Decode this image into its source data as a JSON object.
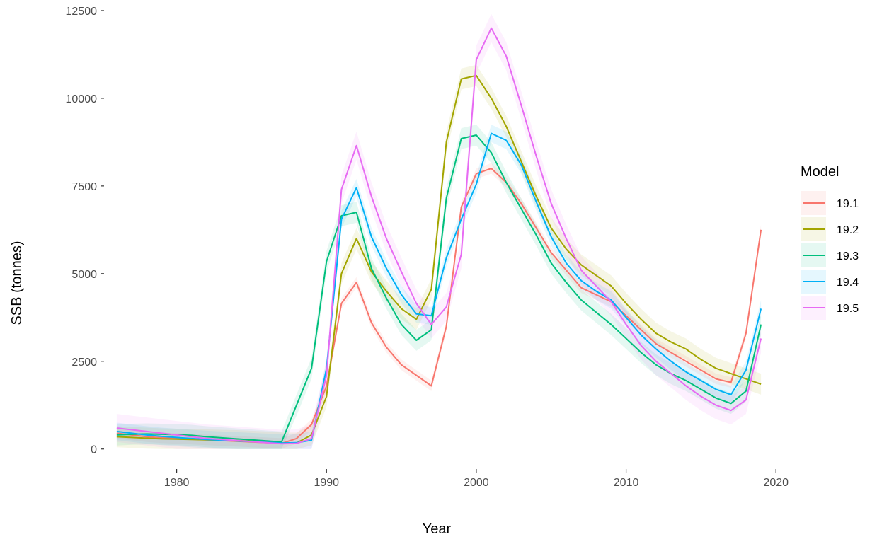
{
  "chart_data": {
    "type": "line",
    "title": "",
    "xlabel": "Year",
    "ylabel": "SSB (tonnes)",
    "xlim": [
      1975.2,
      2019.8
    ],
    "ylim": [
      -550,
      12600
    ],
    "x_ticks": [
      1980,
      1990,
      2000,
      2010,
      2020
    ],
    "y_ticks": [
      0,
      2500,
      5000,
      7500,
      10000,
      12500
    ],
    "x_tick_labels": [
      "1980",
      "1990",
      "2000",
      "2010",
      "2020"
    ],
    "y_tick_labels": [
      "0",
      "2500",
      "5000",
      "7500",
      "10000",
      "12500"
    ],
    "grid": false,
    "legend": {
      "title": "Model",
      "placement": "right"
    },
    "x": [
      1976,
      1977,
      1978,
      1979,
      1980,
      1981,
      1982,
      1983,
      1984,
      1985,
      1986,
      1987,
      1988,
      1989,
      1990,
      1991,
      1992,
      1993,
      1994,
      1995,
      1996,
      1997,
      1998,
      1999,
      2000,
      2001,
      2002,
      2003,
      2004,
      2005,
      2006,
      2007,
      2008,
      2009,
      2010,
      2011,
      2012,
      2013,
      2014,
      2015,
      2016,
      2017,
      2018,
      2019
    ],
    "series": [
      {
        "name": "19.1",
        "color": "#F8766D",
        "values": [
          450,
          400,
          350,
          320,
          300,
          280,
          260,
          240,
          220,
          200,
          180,
          160,
          300,
          700,
          1800,
          4150,
          4750,
          3600,
          2900,
          2400,
          2100,
          1800,
          3500,
          6900,
          7850,
          8000,
          7600,
          7000,
          6300,
          5600,
          5100,
          4600,
          4400,
          4200,
          3800,
          3400,
          3000,
          2750,
          2500,
          2250,
          2000,
          1900,
          3300,
          6250
        ],
        "band": 150
      },
      {
        "name": "19.2",
        "color": "#A3A500",
        "values": [
          350,
          330,
          310,
          290,
          280,
          270,
          260,
          250,
          240,
          220,
          200,
          170,
          170,
          400,
          1500,
          5000,
          6000,
          5050,
          4500,
          4000,
          3700,
          4550,
          8750,
          10550,
          10650,
          10000,
          9200,
          8200,
          7200,
          6300,
          5700,
          5250,
          4950,
          4650,
          4150,
          3700,
          3300,
          3050,
          2850,
          2550,
          2300,
          2150,
          2000,
          1850
        ],
        "band": 300
      },
      {
        "name": "19.3",
        "color": "#00BF7D",
        "values": [
          400,
          420,
          430,
          420,
          410,
          390,
          350,
          320,
          290,
          260,
          230,
          200,
          1250,
          2300,
          5350,
          6650,
          6750,
          5150,
          4300,
          3550,
          3100,
          3400,
          7150,
          8850,
          8950,
          8450,
          7600,
          6850,
          6100,
          5300,
          4750,
          4250,
          3900,
          3550,
          3150,
          2750,
          2400,
          2150,
          1950,
          1700,
          1450,
          1300,
          1650,
          3550
        ],
        "band": 300
      },
      {
        "name": "19.4",
        "color": "#00B0F6",
        "values": [
          500,
          450,
          400,
          360,
          330,
          300,
          270,
          250,
          230,
          210,
          190,
          170,
          180,
          250,
          2300,
          6550,
          7450,
          6050,
          5150,
          4400,
          3850,
          3800,
          5450,
          6550,
          7550,
          9000,
          8800,
          8100,
          7050,
          6050,
          5300,
          4800,
          4500,
          4250,
          3750,
          3250,
          2850,
          2500,
          2200,
          1950,
          1700,
          1550,
          2250,
          4000
        ],
        "band": 250
      },
      {
        "name": "19.5",
        "color": "#E76BF3",
        "values": [
          600,
          550,
          500,
          450,
          400,
          350,
          300,
          270,
          240,
          210,
          180,
          150,
          160,
          300,
          2100,
          7400,
          8650,
          7200,
          6000,
          5050,
          4150,
          3550,
          4050,
          5550,
          11100,
          12000,
          11200,
          9800,
          8350,
          7000,
          6000,
          5100,
          4650,
          4200,
          3550,
          2950,
          2500,
          2150,
          1800,
          1500,
          1250,
          1100,
          1400,
          3150
        ],
        "band": 400
      }
    ]
  }
}
